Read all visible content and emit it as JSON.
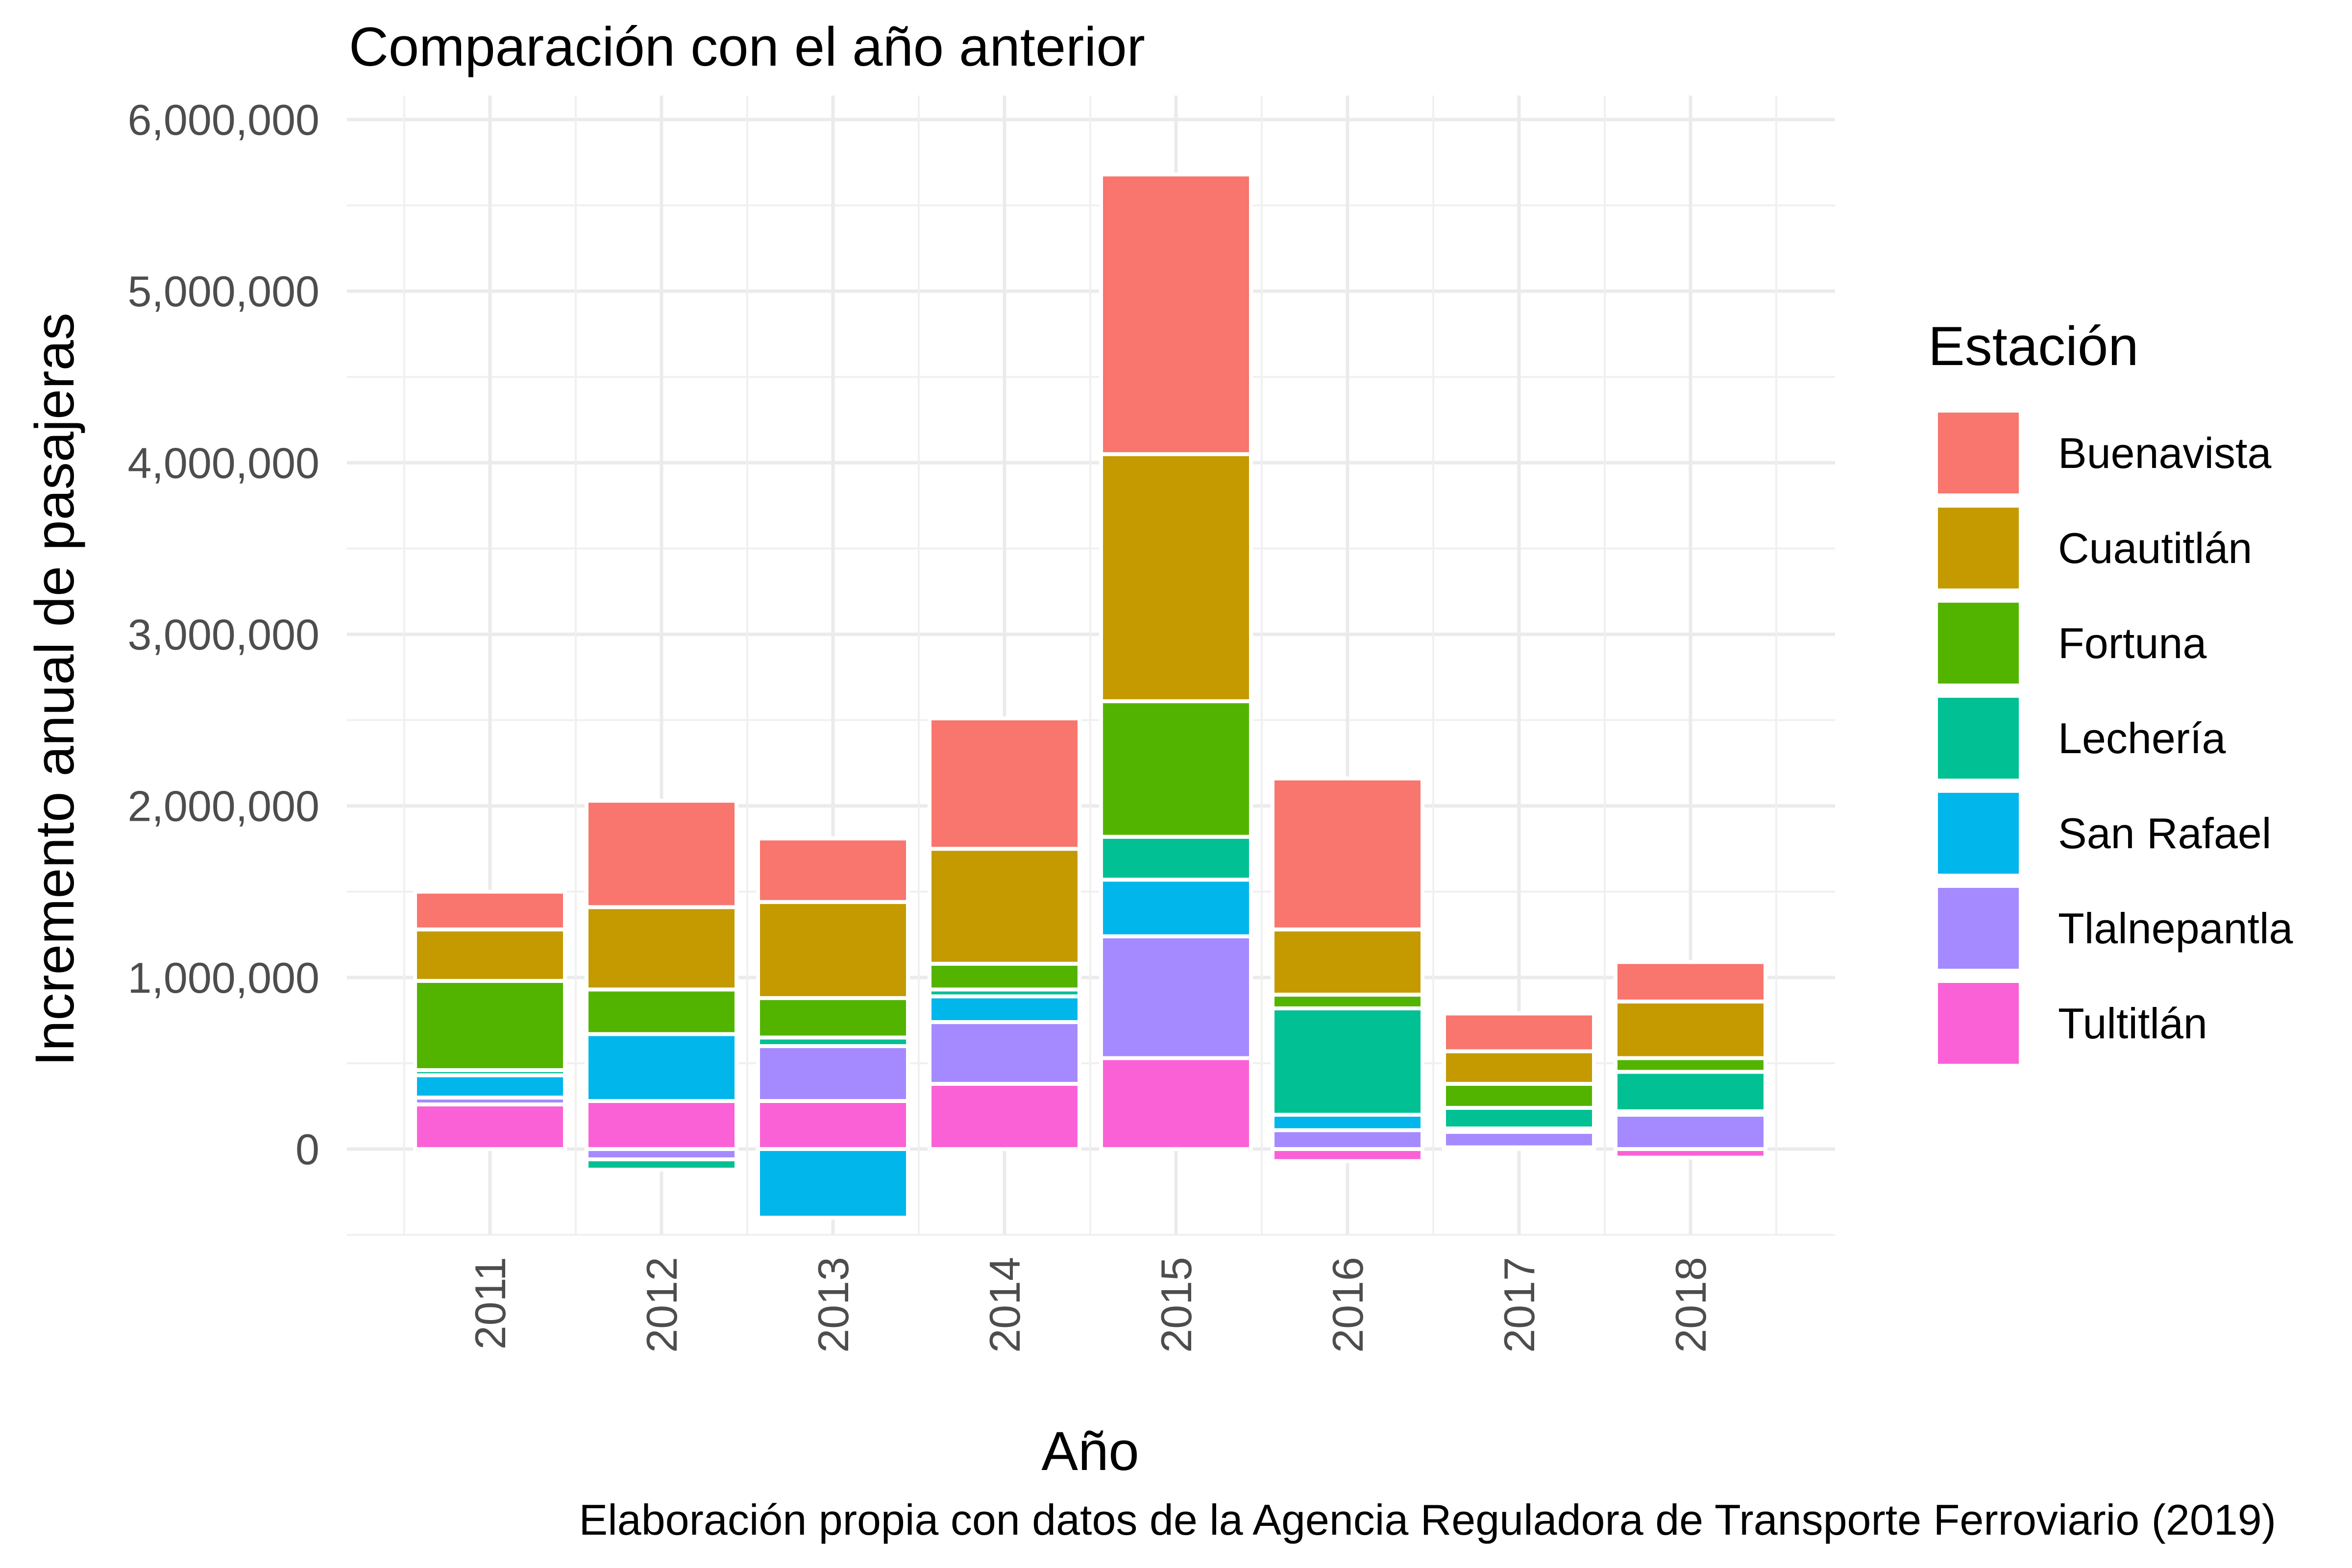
{
  "chart_data": {
    "type": "bar",
    "stacked": true,
    "title": "Comparación con el año anterior",
    "xlabel": "Año",
    "ylabel": "Incremento anual de pasajeras",
    "caption": "Elaboración propia con datos de la Agencia Reguladora de Transporte Ferroviario (2019)",
    "categories": [
      "2011",
      "2012",
      "2013",
      "2014",
      "2015",
      "2016",
      "2017",
      "2018"
    ],
    "ylim": [
      -500000,
      6000000
    ],
    "yticks": [
      0,
      1000000,
      2000000,
      3000000,
      4000000,
      5000000,
      6000000
    ],
    "ytick_labels": [
      "0",
      "1,000,000",
      "2,000,000",
      "3,000,000",
      "4,000,000",
      "5,000,000",
      "6,000,000"
    ],
    "grid": true,
    "legend": {
      "title": "Estación",
      "position": "right"
    },
    "series": [
      {
        "name": "Buenavista",
        "color": "#F8766D",
        "values": [
          220000,
          620000,
          370000,
          760000,
          1630000,
          880000,
          220000,
          230000
        ]
      },
      {
        "name": "Cuautitlán",
        "color": "#C49A00",
        "values": [
          300000,
          480000,
          560000,
          670000,
          1440000,
          380000,
          190000,
          330000
        ]
      },
      {
        "name": "Fortuna",
        "color": "#53B400",
        "values": [
          520000,
          260000,
          230000,
          150000,
          790000,
          80000,
          140000,
          80000
        ]
      },
      {
        "name": "Lechería",
        "color": "#00C094",
        "values": [
          30000,
          -60000,
          50000,
          40000,
          250000,
          620000,
          120000,
          230000
        ]
      },
      {
        "name": "San Rafael",
        "color": "#00B6EB",
        "values": [
          130000,
          390000,
          -400000,
          150000,
          330000,
          90000,
          20000,
          20000
        ]
      },
      {
        "name": "Tlalnepantla",
        "color": "#A58AFF",
        "values": [
          40000,
          -60000,
          320000,
          360000,
          710000,
          110000,
          90000,
          200000
        ]
      },
      {
        "name": "Tultitlán",
        "color": "#FB61D7",
        "values": [
          260000,
          280000,
          280000,
          380000,
          530000,
          -70000,
          10000,
          -50000
        ]
      }
    ]
  }
}
